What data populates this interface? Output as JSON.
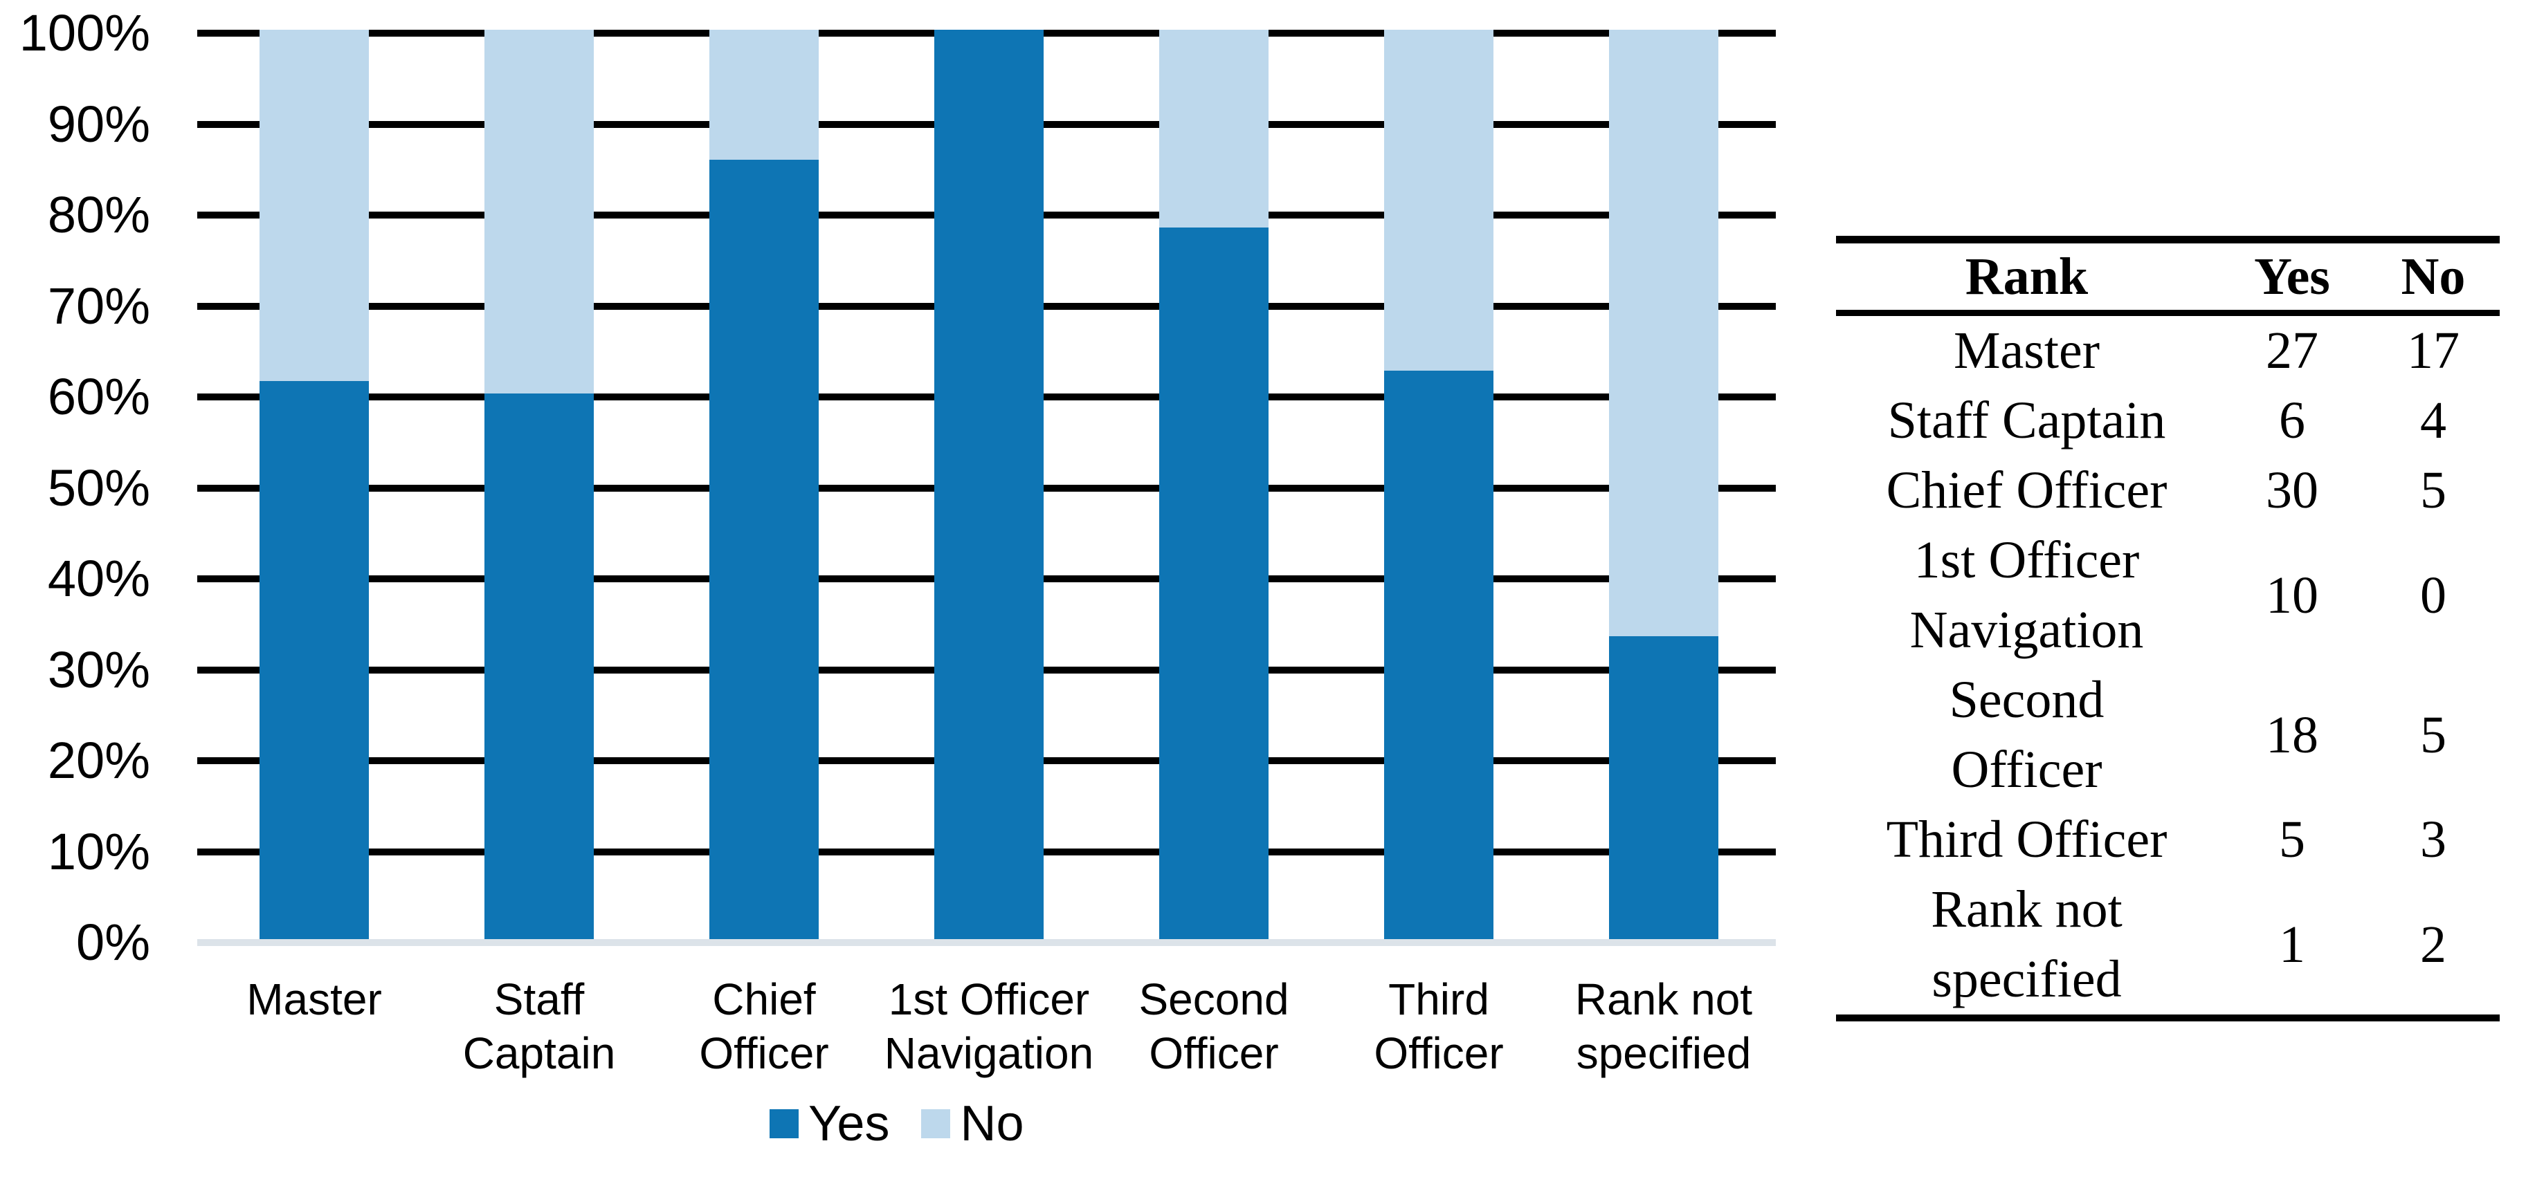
{
  "chart_data": {
    "type": "bar",
    "subtype": "100%-stacked-column",
    "title": "",
    "xlabel": "",
    "ylabel": "",
    "categories": [
      "Master",
      "Staff Captain",
      "Chief Officer",
      "1st Officer Navigation",
      "Second Officer",
      "Third Officer",
      "Rank not specified"
    ],
    "category_label_lines": [
      [
        "Master"
      ],
      [
        "Staff",
        "Captain"
      ],
      [
        "Chief",
        "Officer"
      ],
      [
        "1st Officer",
        "Navigation"
      ],
      [
        "Second",
        "Officer"
      ],
      [
        "Third",
        "Officer"
      ],
      [
        "Rank not",
        "specified"
      ]
    ],
    "series": [
      {
        "name": "Yes",
        "color": "#0e75b4",
        "values": [
          27,
          6,
          30,
          10,
          18,
          5,
          1
        ]
      },
      {
        "name": "No",
        "color": "#bdd8ec",
        "values": [
          17,
          4,
          5,
          0,
          5,
          3,
          2
        ]
      }
    ],
    "yes_percentages": [
      61.4,
      60.0,
      85.7,
      100.0,
      78.3,
      62.5,
      33.3
    ],
    "y_ticks": [
      "100%",
      "90%",
      "80%",
      "70%",
      "60%",
      "50%",
      "40%",
      "30%",
      "20%",
      "10%",
      "0%"
    ],
    "ylim": [
      0,
      100
    ],
    "grid": true,
    "gridline_color": "#000000",
    "axis_line_color": "#dce3e9",
    "legend_position": "bottom"
  },
  "table": {
    "headers": [
      "Rank",
      "Yes",
      "No"
    ],
    "rows": [
      {
        "rank": "Master",
        "rank_lines": [
          "Master"
        ],
        "yes": "27",
        "no": "17"
      },
      {
        "rank": "Staff Captain",
        "rank_lines": [
          "Staff Captain"
        ],
        "yes": "6",
        "no": "4"
      },
      {
        "rank": "Chief Officer",
        "rank_lines": [
          "Chief Officer"
        ],
        "yes": "30",
        "no": "5"
      },
      {
        "rank": "1st Officer Navigation",
        "rank_lines": [
          "1st Officer",
          "Navigation"
        ],
        "yes": "10",
        "no": "0"
      },
      {
        "rank": "Second Officer",
        "rank_lines": [
          "Second",
          "Officer"
        ],
        "yes": "18",
        "no": "5"
      },
      {
        "rank": "Third Officer",
        "rank_lines": [
          "Third Officer"
        ],
        "yes": "5",
        "no": "3"
      },
      {
        "rank": "Rank not specified",
        "rank_lines": [
          "Rank not",
          "specified"
        ],
        "yes": "1",
        "no": "2"
      }
    ]
  },
  "colors": {
    "yes": "#0e75b4",
    "no": "#bdd8ec",
    "gridline": "#000000",
    "axis_line": "#dce3e9",
    "text": "#000000",
    "background": "#ffffff"
  }
}
